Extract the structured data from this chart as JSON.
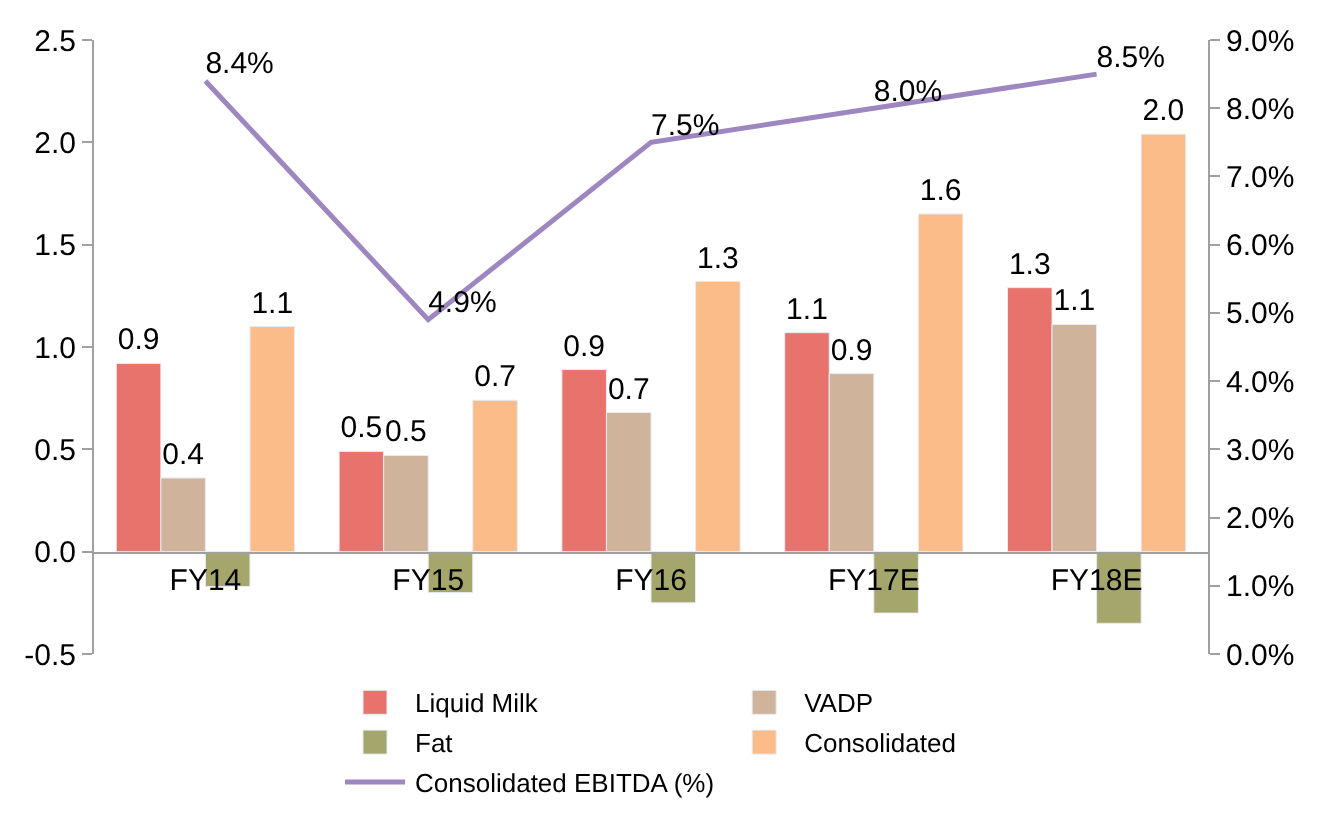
{
  "chart_data": {
    "type": "bar",
    "categories": [
      "FY14",
      "FY15",
      "FY16",
      "FY17E",
      "FY18E"
    ],
    "series": [
      {
        "name": "Liquid Milk",
        "color": "#e8736c",
        "values": [
          0.92,
          0.49,
          0.89,
          1.07,
          1.29
        ],
        "value_labels": [
          "0.9",
          "0.5",
          "0.9",
          "1.1",
          "1.3"
        ]
      },
      {
        "name": "VADP",
        "color": "#cfb39b",
        "values": [
          0.36,
          0.47,
          0.68,
          0.87,
          1.11
        ],
        "value_labels": [
          "0.4",
          "0.5",
          "0.7",
          "0.9",
          "1.1"
        ]
      },
      {
        "name": "Fat",
        "color": "#a5a66b",
        "values": [
          -0.17,
          -0.2,
          -0.25,
          -0.3,
          -0.35
        ]
      },
      {
        "name": "Consolidated",
        "color": "#fbbc8a",
        "values": [
          1.1,
          0.74,
          1.32,
          1.65,
          2.04
        ],
        "value_labels": [
          "1.1",
          "0.7",
          "1.3",
          "1.6",
          "2.0"
        ]
      },
      {
        "name": "Consolidated EBITDA (%)",
        "type": "line",
        "axis": "y2",
        "color": "#9e86c0",
        "values": [
          8.4,
          4.9,
          7.5,
          8.0,
          8.5
        ],
        "value_labels": [
          "8.4%",
          "4.9%",
          "7.5%",
          "8.0%",
          "8.5%"
        ]
      }
    ],
    "ylim": [
      -0.5,
      2.5
    ],
    "yticks": [
      {
        "value": -0.5,
        "label": "-0.5"
      },
      {
        "value": 0,
        "label": "0.0"
      },
      {
        "value": 0.5,
        "label": "0.5"
      },
      {
        "value": 1,
        "label": "1.0"
      },
      {
        "value": 1.5,
        "label": "1.5"
      },
      {
        "value": 2,
        "label": "2.0"
      },
      {
        "value": 2.5,
        "label": "2.5"
      }
    ],
    "y2lim": [
      0,
      9
    ],
    "y2ticks": [
      {
        "value": 0,
        "label": "0.0%"
      },
      {
        "value": 1,
        "label": "1.0%"
      },
      {
        "value": 2,
        "label": "2.0%"
      },
      {
        "value": 3,
        "label": "3.0%"
      },
      {
        "value": 4,
        "label": "4.0%"
      },
      {
        "value": 5,
        "label": "5.0%"
      },
      {
        "value": 6,
        "label": "6.0%"
      },
      {
        "value": 7,
        "label": "7.0%"
      },
      {
        "value": 8,
        "label": "8.0%"
      },
      {
        "value": 9,
        "label": "9.0%"
      }
    ],
    "legend": "bottom",
    "marker": "none",
    "line_style": "solid"
  }
}
